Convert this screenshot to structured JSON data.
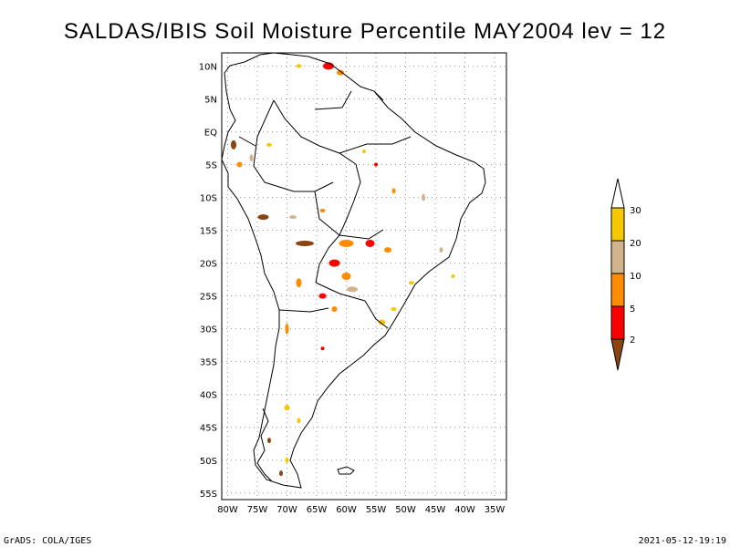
{
  "title": "SALDAS/IBIS Soil Moisture Percentile MAY2004 lev = 12",
  "footer": {
    "left": "GrADS: COLA/IGES",
    "right": "2021-05-12-19:19"
  },
  "axes": {
    "lat_ticks": [
      "10N",
      "5N",
      "EQ",
      "5S",
      "10S",
      "15S",
      "20S",
      "25S",
      "30S",
      "35S",
      "40S",
      "45S",
      "50S",
      "55S"
    ],
    "lon_ticks": [
      "80W",
      "75W",
      "70W",
      "65W",
      "60W",
      "55W",
      "50W",
      "45W",
      "40W",
      "35W"
    ],
    "lat_range": [
      12,
      -56
    ],
    "lon_range": [
      -81,
      -33
    ],
    "grid": "dotted"
  },
  "legend": {
    "labels": [
      "30",
      "20",
      "10",
      "5",
      "2"
    ],
    "colors": {
      "above30": "#ffffff",
      "20to30": "#f5c800",
      "10to20": "#d2b48c",
      "5to10": "#ff8c00",
      "2to5": "#ff0000",
      "below2": "#8b4513"
    }
  }
}
